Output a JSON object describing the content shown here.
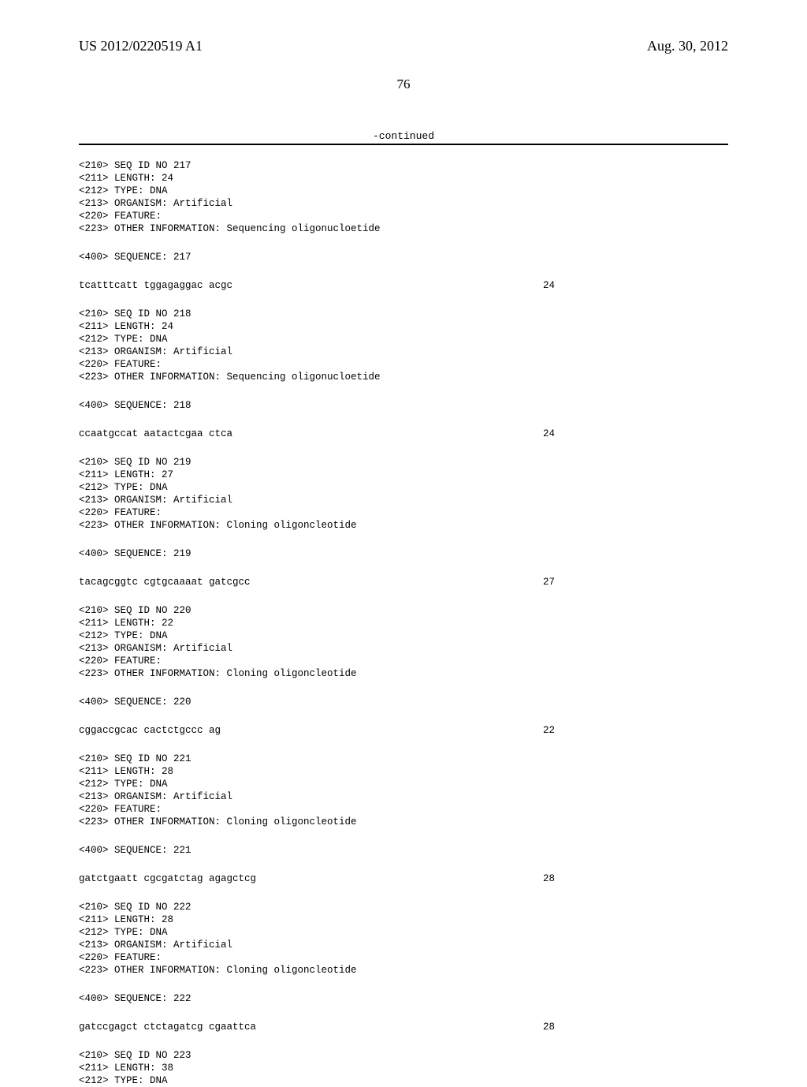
{
  "header": {
    "pub_number": "US 2012/0220519 A1",
    "pub_date": "Aug. 30, 2012"
  },
  "page_number": "76",
  "continued": "-continued",
  "entries": [
    {
      "meta": "<210> SEQ ID NO 217\n<211> LENGTH: 24\n<212> TYPE: DNA\n<213> ORGANISM: Artificial\n<220> FEATURE:\n<223> OTHER INFORMATION: Sequencing oligonucloetide",
      "seq_label": "<400> SEQUENCE: 217",
      "sequence": "tcatttcatt tggagaggac acgc",
      "length": "24"
    },
    {
      "meta": "<210> SEQ ID NO 218\n<211> LENGTH: 24\n<212> TYPE: DNA\n<213> ORGANISM: Artificial\n<220> FEATURE:\n<223> OTHER INFORMATION: Sequencing oligonucloetide",
      "seq_label": "<400> SEQUENCE: 218",
      "sequence": "ccaatgccat aatactcgaa ctca",
      "length": "24"
    },
    {
      "meta": "<210> SEQ ID NO 219\n<211> LENGTH: 27\n<212> TYPE: DNA\n<213> ORGANISM: Artificial\n<220> FEATURE:\n<223> OTHER INFORMATION: Cloning oligoncleotide",
      "seq_label": "<400> SEQUENCE: 219",
      "sequence": "tacagcggtc cgtgcaaaat gatcgcc",
      "length": "27"
    },
    {
      "meta": "<210> SEQ ID NO 220\n<211> LENGTH: 22\n<212> TYPE: DNA\n<213> ORGANISM: Artificial\n<220> FEATURE:\n<223> OTHER INFORMATION: Cloning oligoncleotide",
      "seq_label": "<400> SEQUENCE: 220",
      "sequence": "cggaccgcac cactctgccc ag",
      "length": "22"
    },
    {
      "meta": "<210> SEQ ID NO 221\n<211> LENGTH: 28\n<212> TYPE: DNA\n<213> ORGANISM: Artificial\n<220> FEATURE:\n<223> OTHER INFORMATION: Cloning oligoncleotide",
      "seq_label": "<400> SEQUENCE: 221",
      "sequence": "gatctgaatt cgcgatctag agagctcg",
      "length": "28"
    },
    {
      "meta": "<210> SEQ ID NO 222\n<211> LENGTH: 28\n<212> TYPE: DNA\n<213> ORGANISM: Artificial\n<220> FEATURE:\n<223> OTHER INFORMATION: Cloning oligoncleotide",
      "seq_label": "<400> SEQUENCE: 222",
      "sequence": "gatccgagct ctctagatcg cgaattca",
      "length": "28"
    },
    {
      "meta": "<210> SEQ ID NO 223\n<211> LENGTH: 38\n<212> TYPE: DNA",
      "seq_label": null,
      "sequence": null,
      "length": null
    }
  ]
}
